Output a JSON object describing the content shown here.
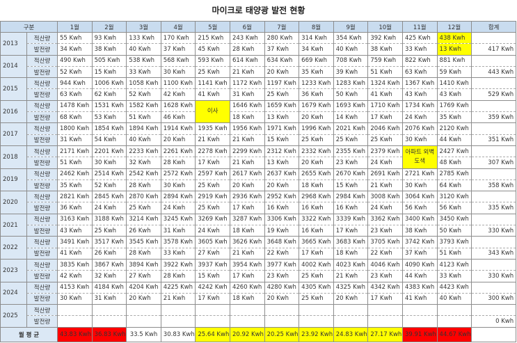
{
  "title": "마이크로 태양광 발전 현황",
  "header": {
    "label": "구분",
    "months": [
      "1월",
      "2월",
      "3월",
      "4월",
      "5월",
      "6월",
      "7월",
      "8월",
      "9월",
      "10월",
      "11월",
      "12월"
    ],
    "total": "합계"
  },
  "years": [
    {
      "year": "2013",
      "rows": [
        {
          "label": "적산량",
          "cells": [
            "55 Kwh",
            "93 Kwh",
            "133 Kwh",
            "170 Kwh",
            "215 Kwh",
            "243 Kwh",
            "280 Kwh",
            "314 Kwh",
            "354 Kwh",
            "392 Kwh",
            "425 Kwh",
            "438 Kwh"
          ]
        },
        {
          "label": "발전량",
          "cells": [
            "34 Kwh",
            "38 Kwh",
            "40 Kwh",
            "37 Kwh",
            "45 Kwh",
            "28 Kwh",
            "37 Kwh",
            "34 Kwh",
            "40 Kwh",
            "38 Kwh",
            "33 Kwh",
            "13 Kwh"
          ],
          "total": "417 Kwh"
        }
      ]
    },
    {
      "year": "2014",
      "rows": [
        {
          "label": "적산량",
          "cells": [
            "490 Kwh",
            "505 Kwh",
            "538 Kwh",
            "568 Kwh",
            "593 Kwh",
            "614 Kwh",
            "634 Kwh",
            "669 Kwh",
            "708 Kwh",
            "759 Kwh",
            "822 Kwh",
            "881 Kwh"
          ]
        },
        {
          "label": "발전량",
          "cells": [
            "52 Kwh",
            "15 Kwh",
            "33 Kwh",
            "30 Kwh",
            "25 Kwh",
            "21 Kwh",
            "20 Kwh",
            "35 Kwh",
            "39 Kwh",
            "51 Kwh",
            "63 Kwh",
            "59 Kwh"
          ],
          "total": "443 Kwh"
        }
      ]
    },
    {
      "year": "2015",
      "rows": [
        {
          "label": "적산량",
          "cells": [
            "944 Kwh",
            "1006 Kwh",
            "1058 Kwh",
            "1100 Kwh",
            "1141 Kwh",
            "1172 Kwh",
            "1197 Kwh",
            "1233 Kwh",
            "1283 Kwh",
            "1324 Kwh",
            "1367 Kwh",
            "1410 Kwh"
          ]
        },
        {
          "label": "발전량",
          "cells": [
            "63 Kwh",
            "62 Kwh",
            "52 Kwh",
            "42 Kwh",
            "41 Kwh",
            "31 Kwh",
            "25 Kwh",
            "36 Kwh",
            "50 Kwh",
            "41 Kwh",
            "43 Kwh",
            "43 Kwh"
          ],
          "total": "529 Kwh"
        }
      ]
    },
    {
      "year": "2016",
      "rows": [
        {
          "label": "적산량",
          "cells": [
            "1478 Kwh",
            "1531 Kwh",
            "1582 Kwh",
            "1628 Kwh",
            "이사",
            "1646 Kwh",
            "1659 Kwh",
            "1679 Kwh",
            "1693 Kwh",
            "1710 Kwh",
            "1734 Kwh",
            "1769 Kwh"
          ]
        },
        {
          "label": "발전량",
          "cells": [
            "68 Kwh",
            "53 Kwh",
            "51 Kwh",
            "46 Kwh",
            null,
            "18 Kwh",
            "13 Kwh",
            "20 Kwh",
            "14 Kwh",
            "17 Kwh",
            "24 Kwh",
            "35 Kwh"
          ],
          "total": "359 Kwh"
        }
      ]
    },
    {
      "year": "2017",
      "rows": [
        {
          "label": "적산량",
          "cells": [
            "1800 Kwh",
            "1854 Kwh",
            "1894 Kwh",
            "1914 Kwh",
            "1935 Kwh",
            "1956 Kwh",
            "1971 Kwh",
            "1996 Kwh",
            "2021 Kwh",
            "2046 Kwh",
            "2076 Kwh",
            "2120 Kwh"
          ]
        },
        {
          "label": "발전량",
          "cells": [
            "31 Kwh",
            "54 Kwh",
            "40 Kwh",
            "20 Kwh",
            "21 Kwh",
            "21 Kwh",
            "15 Kwh",
            "25 Kwh",
            "25 Kwh",
            "25 Kwh",
            "30 Kwh",
            "44 Kwh"
          ],
          "total": "351 Kwh"
        }
      ]
    },
    {
      "year": "2018",
      "rows": [
        {
          "label": "적산량",
          "cells": [
            "2171 Kwh",
            "2201 Kwh",
            "2233 Kwh",
            "2261 Kwh",
            "2278 Kwh",
            "2299 Kwh",
            "2312 Kwh",
            "2332 Kwh",
            "2355 Kwh",
            "2379 Kwh",
            "아파트 외벽도색",
            "2427 Kwh"
          ]
        },
        {
          "label": "발전량",
          "cells": [
            "51 Kwh",
            "30 Kwh",
            "32 Kwh",
            "28 Kwh",
            "17 Kwh",
            "21 Kwh",
            "13 Kwh",
            "20 Kwh",
            "23 Kwh",
            "24 Kwh",
            null,
            "48 Kwh"
          ],
          "total": "307 Kwh"
        }
      ]
    },
    {
      "year": "2019",
      "rows": [
        {
          "label": "적산량",
          "cells": [
            "2462 Kwh",
            "2514 Kwh",
            "2542 Kwh",
            "2572 Kwh",
            "2597 Kwh",
            "2617 Kwh",
            "2637 Kwh",
            "2655 Kwh",
            "2670 Kwh",
            "2691 Kwh",
            "2721 Kwh",
            "2785 Kwh"
          ]
        },
        {
          "label": "발전량",
          "cells": [
            "35 Kwh",
            "52 Kwh",
            "28 Kwh",
            "30 Kwh",
            "25 Kwh",
            "20 Kwh",
            "20 Kwh",
            "18 Kwh",
            "15 Kwh",
            "21 Kwh",
            "30 Kwh",
            "64 Kwh"
          ],
          "total": "358 Kwh"
        }
      ]
    },
    {
      "year": "2020",
      "rows": [
        {
          "label": "적산량",
          "cells": [
            "2821 Kwh",
            "2845 Kwh",
            "2870 Kwh",
            "2894 Kwh",
            "2919 Kwh",
            "2936 Kwh",
            "2952 Kwh",
            "2968 Kwh",
            "2984 Kwh",
            "3008 Kwh",
            "3064 Kwh",
            "3120 Kwh"
          ]
        },
        {
          "label": "발전량",
          "cells": [
            "36 Kwh",
            "24 Kwh",
            "25 Kwh",
            "24 Kwh",
            "25 Kwh",
            "17 Kwh",
            "16 Kwh",
            "16 Kwh",
            "16 Kwh",
            "24 Kwh",
            "56 Kwh",
            "56 Kwh"
          ],
          "total": "335 Kwh"
        }
      ]
    },
    {
      "year": "2021",
      "rows": [
        {
          "label": "적산량",
          "cells": [
            "3163 Kwh",
            "3188 Kwh",
            "3214 Kwh",
            "3245 Kwh",
            "3269 Kwh",
            "3287 Kwh",
            "3306 Kwh",
            "3322 Kwh",
            "3339 Kwh",
            "3362 Kwh",
            "3400 Kwh",
            "3450 Kwh"
          ]
        },
        {
          "label": "발전량",
          "cells": [
            "43 Kwh",
            "25 Kwh",
            "26 Kwh",
            "31 Kwh",
            "24 Kwh",
            "18 Kwh",
            "19 Kwh",
            "16 Kwh",
            "17 Kwh",
            "23 Kwh",
            "38 Kwh",
            "50 Kwh"
          ],
          "total": "330 Kwh"
        }
      ]
    },
    {
      "year": "2022",
      "rows": [
        {
          "label": "적산량",
          "cells": [
            "3491 Kwh",
            "3517 Kwh",
            "3545 Kwh",
            "3578 Kwh",
            "3605 Kwh",
            "3626 Kwh",
            "3648 Kwh",
            "3665 Kwh",
            "3683 Kwh",
            "3705 Kwh",
            "3742 Kwh",
            "3793 Kwh"
          ]
        },
        {
          "label": "발전량",
          "cells": [
            "41 Kwh",
            "26 Kwh",
            "28 Kwh",
            "33 Kwh",
            "27 Kwh",
            "21 Kwh",
            "22 Kwh",
            "17 Kwh",
            "18 Kwh",
            "22 Kwh",
            "37 Kwh",
            "51 Kwh"
          ],
          "total": "343 Kwh"
        }
      ]
    },
    {
      "year": "2023",
      "rows": [
        {
          "label": "적산량",
          "cells": [
            "3835 Kwh",
            "3867 Kwh",
            "3894 Kwh",
            "3922 Kwh",
            "3937 Kwh",
            "3954 Kwh",
            "3977 Kwh",
            "4002 Kwh",
            "4023 Kwh",
            "4046 Kwh",
            "4090 Kwh",
            "4123 Kwh"
          ]
        },
        {
          "label": "발전량",
          "cells": [
            "42 Kwh",
            "32 Kwh",
            "27 Kwh",
            "28 Kwh",
            "15 Kwh",
            "17 Kwh",
            "23 Kwh",
            "25 Kwh",
            "21 Kwh",
            "23 Kwh",
            "44 Kwh",
            "33 Kwh"
          ],
          "total": "330 Kwh"
        }
      ]
    },
    {
      "year": "2024",
      "rows": [
        {
          "label": "적산량",
          "cells": [
            "4153 Kwh",
            "4184 Kwh",
            "4204 Kwh",
            "4225 Kwh",
            "4242 Kwh",
            "4260 Kwh",
            "4280 Kwh",
            "4305 Kwh",
            "4325 Kwh",
            "4342 Kwh",
            "4383 Kwh",
            "4423 Kwh"
          ]
        },
        {
          "label": "발전량",
          "cells": [
            "30 Kwh",
            "31 Kwh",
            "20 Kwh",
            "21 Kwh",
            "17 Kwh",
            "18 Kwh",
            "20 Kwh",
            "25 Kwh",
            "20 Kwh",
            "17 Kwh",
            "41 Kwh",
            "40 Kwh"
          ],
          "total": "300 Kwh"
        }
      ]
    },
    {
      "year": "2025",
      "rows": [
        {
          "label": "적산량",
          "cells": []
        },
        {
          "label": "발전량",
          "cells": [],
          "total": "0 Kwh"
        }
      ]
    }
  ],
  "average": {
    "label": "월 평 균",
    "cells": [
      "43.83 Kwh",
      "36.83 Kwh",
      "33.5 Kwh",
      "30.83 Kwh",
      "25.64 Kwh",
      "20.92 Kwh",
      "20.25 Kwh",
      "23.92 Kwh",
      "24.83 Kwh",
      "27.17 Kwh",
      "39.91 Kwh",
      "44.67 Kwh"
    ],
    "colors": [
      "#ff0000",
      "#ff0000",
      null,
      null,
      "#ffff00",
      "#ffff00",
      "#ffff00",
      "#ffff00",
      "#ffff00",
      "#ffff00",
      "#ff0000",
      "#ff0000"
    ]
  }
}
